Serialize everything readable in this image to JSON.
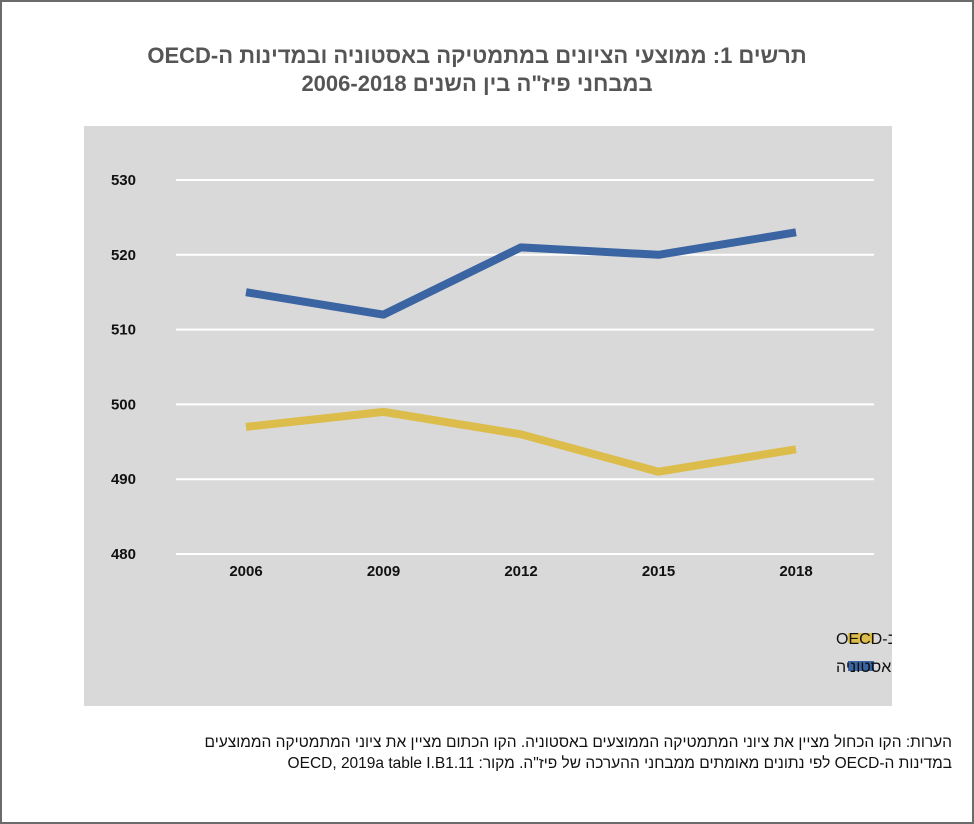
{
  "title_line1": "תרשים 1: ממוצעי הציונים במתמטיקה באסטוניה ובמדינות ה-OECD",
  "title_line2": "במבחני פיז\"ה בין השנים 2006-2018",
  "note_line1": "הערות: הקו הכחול מציין את ציוני המתמטיקה הממוצעים באסטוניה. הקו הכתום מציין את ציוני המתמטיקה הממוצעים",
  "note_line2": "במדינות ה-OECD לפי נתונים מאומתים ממבחני ההערכה של פיז\"ה. מקור: OECD, 2019a table I.B1.11",
  "chart_data": {
    "type": "line",
    "title": "תרשים 1: ממוצעי הציונים במתמטיקה באסטוניה ובמדינות ה-OECD במבחני פיז\"ה בין השנים 2006-2018",
    "categories": [
      "2006",
      "2009",
      "2012",
      "2015",
      "2018"
    ],
    "y_ticks": [
      480,
      490,
      500,
      510,
      520,
      530
    ],
    "ylim": [
      480,
      530
    ],
    "grid": true,
    "legend_position": "bottom-right",
    "series": [
      {
        "name": "הציון הממוצע ב-OECD",
        "values": [
          497,
          499,
          496,
          491,
          494
        ],
        "color": "#dcbc4a"
      },
      {
        "name": "הציון הממוצע באסטוניה",
        "values": [
          515,
          512,
          521,
          520,
          523
        ],
        "color": "#3a64a2"
      }
    ]
  }
}
